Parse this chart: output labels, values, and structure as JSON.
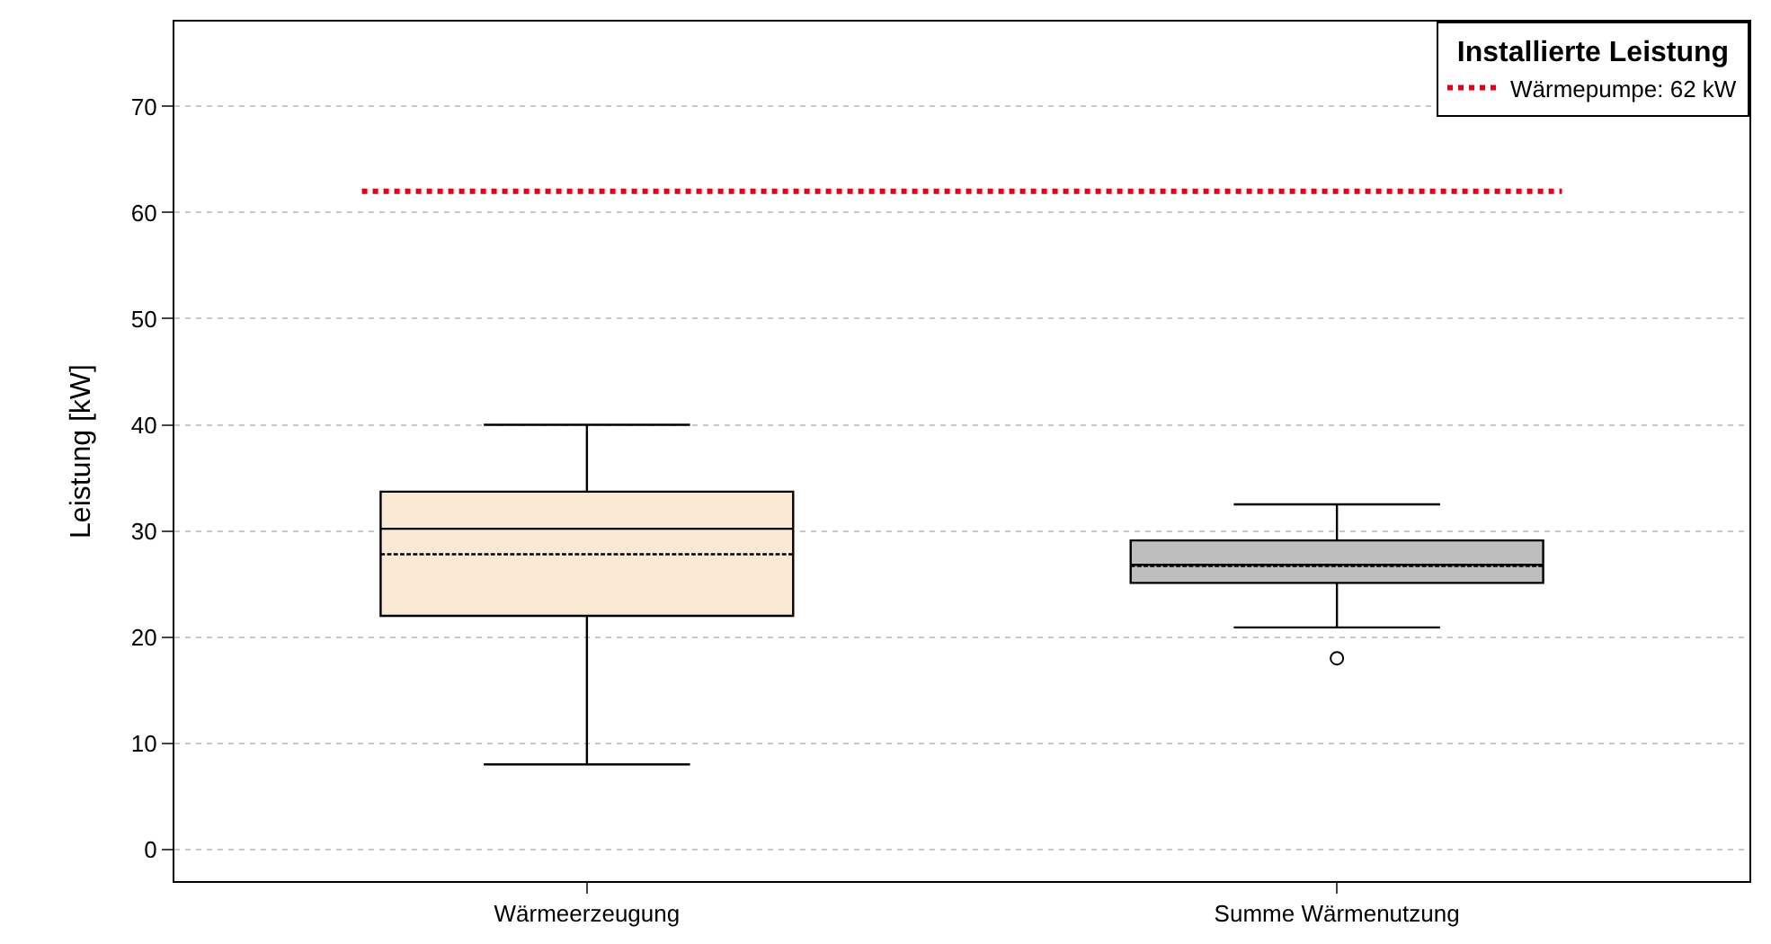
{
  "chart_data": {
    "type": "box",
    "ylabel": "Leistung [kW]",
    "legend_title": "Installierte Leistung",
    "categories": [
      "Wärmeerzeugung",
      "Summe Wärmenutzung"
    ],
    "colors": [
      "#fae9d5",
      "#bebebe"
    ],
    "boxes": [
      {
        "low": 8,
        "q1": 22.0,
        "median": 30.2,
        "q3": 33.7,
        "high": 40,
        "mean": 27.8
      },
      {
        "low": 20.9,
        "q1": 25.1,
        "median": 26.8,
        "q3": 29.1,
        "high": 32.5,
        "mean": 26.7,
        "outliers": [
          18.0
        ]
      }
    ],
    "ref_lines": [
      {
        "axis": "y",
        "value": 62,
        "label": "Wärmepumpe: 62 kW",
        "color": "#e3001b",
        "line_style": "dotted"
      }
    ],
    "ylim": [
      -3,
      78
    ],
    "yticks": [
      0,
      10,
      20,
      30,
      40,
      50,
      60,
      70
    ],
    "grid": "y",
    "legend": "top right"
  }
}
